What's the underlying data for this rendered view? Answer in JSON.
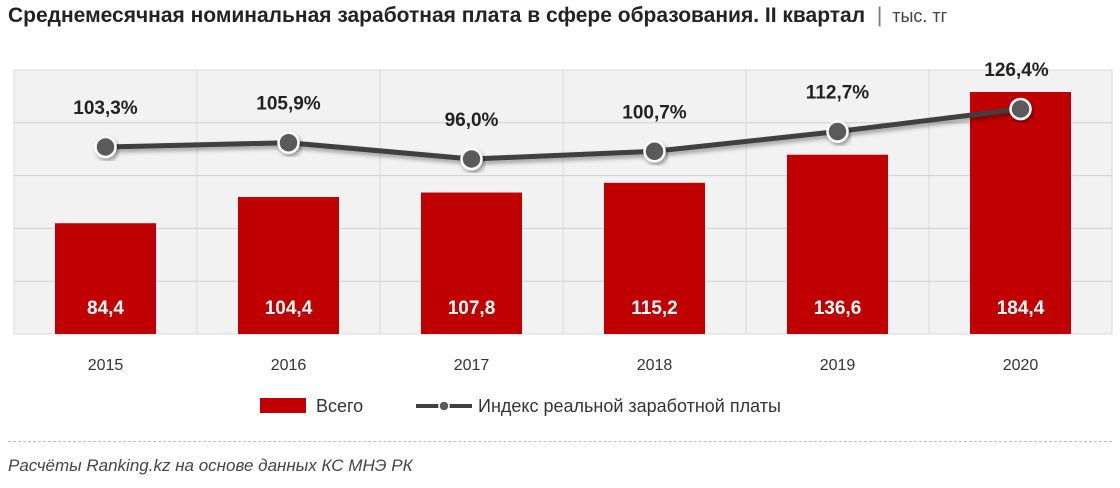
{
  "header": {
    "title": "Среднемесячная номинальная заработная плата в сфере образования. II квартал",
    "separator": "|",
    "unit": "тыс. тг"
  },
  "chart_data": {
    "type": "bar",
    "categories": [
      "2015",
      "2016",
      "2017",
      "2018",
      "2019",
      "2020"
    ],
    "series": [
      {
        "name": "Всего",
        "type": "bar",
        "color": "#c00000",
        "values": [
          84.4,
          104.4,
          107.8,
          115.2,
          136.6,
          184.4
        ],
        "labels": [
          "84,4",
          "104,4",
          "107,8",
          "115,2",
          "136,6",
          "184,4"
        ]
      },
      {
        "name": "Индекс реальной заработной платы",
        "type": "line",
        "color": "#404040",
        "values": [
          103.3,
          105.9,
          96.0,
          100.7,
          112.7,
          126.4
        ],
        "labels": [
          "103,3%",
          "105,9%",
          "96,0%",
          "100,7%",
          "112,7%",
          "126,4%"
        ]
      }
    ],
    "grid": true,
    "legend": "bottom-center"
  },
  "footer": {
    "source": "Расчёты Ranking.kz на основе данных КС МНЭ РК"
  }
}
